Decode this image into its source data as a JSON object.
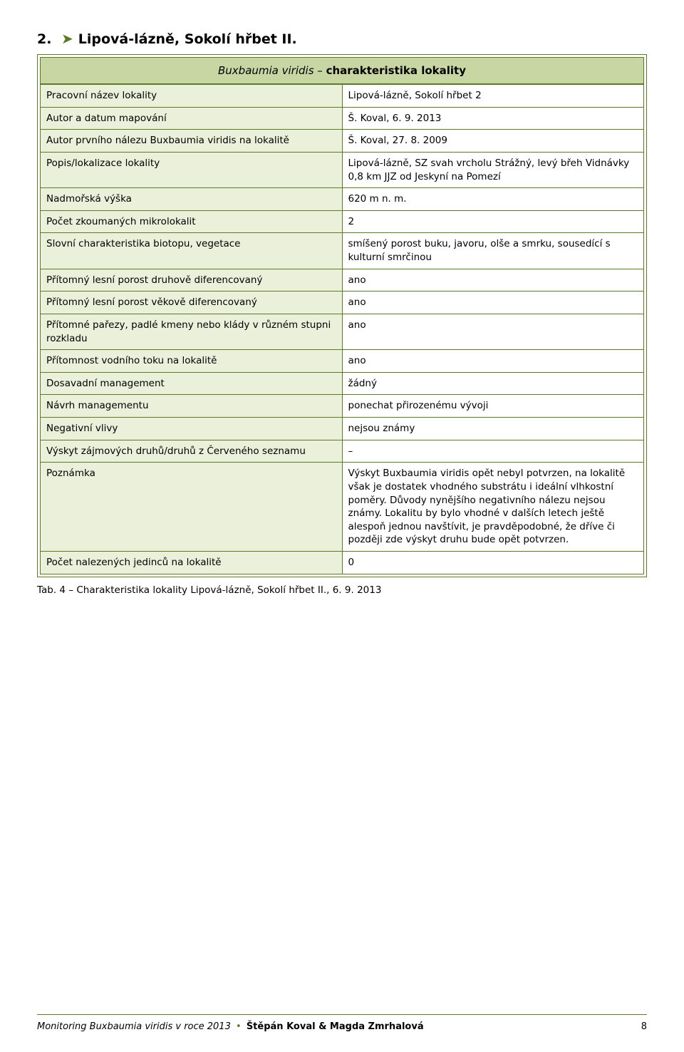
{
  "section": {
    "number": "2.",
    "arrow_glyph": "➤",
    "title": "Lipová-lázně, Sokolí hřbet II."
  },
  "box_caption": {
    "italic": "Buxbaumia viridis",
    "rest": " – ",
    "bold": "charakteristika lokality"
  },
  "rows": [
    {
      "label": "Pracovní název lokality",
      "value": "Lipová-lázně, Sokolí hřbet 2"
    },
    {
      "label": "Autor a datum mapování",
      "value": "Š. Koval, 6. 9. 2013"
    },
    {
      "label": "Autor prvního nálezu Buxbaumia viridis na lokalitě",
      "value": "Š. Koval, 27. 8. 2009"
    },
    {
      "label": "Popis/lokalizace lokality",
      "value": "Lipová-lázně, SZ svah vrcholu Strážný, levý břeh Vidnávky 0,8 km JJZ od Jeskyní na Pomezí"
    },
    {
      "label": "Nadmořská výška",
      "value": "620 m n. m."
    },
    {
      "label": "Počet zkoumaných mikrolokalit",
      "value": "2"
    },
    {
      "label": "Slovní charakteristika biotopu, vegetace",
      "value": "smíšený porost buku, javoru, olše a smrku, sousedící s kulturní smrčinou"
    },
    {
      "label": "Přítomný lesní porost druhově diferencovaný",
      "value": "ano"
    },
    {
      "label": "Přítomný lesní porost věkově diferencovaný",
      "value": "ano"
    },
    {
      "label": "Přítomné pařezy, padlé kmeny nebo klády v různém stupni rozkladu",
      "value": "ano"
    },
    {
      "label": "Přítomnost vodního toku na lokalitě",
      "value": "ano"
    },
    {
      "label": "Dosavadní management",
      "value": "žádný"
    },
    {
      "label": "Návrh managementu",
      "value": "ponechat přirozenému vývoji"
    },
    {
      "label": "Negativní vlivy",
      "value": "nejsou známy"
    },
    {
      "label": "Výskyt zájmových druhů/druhů z Červeného seznamu",
      "value": "–"
    },
    {
      "label": "Poznámka",
      "value": "Výskyt Buxbaumia viridis opět nebyl potvrzen, na lokalitě však je dostatek vhodného substrátu i ideální vlhkostní poměry. Důvody nynějšího negativního nálezu nejsou známy. Lokalitu by bylo vhodné v dalších letech ještě alespoň jednou navštívit, je pravděpodobné, že dříve či později zde výskyt druhu bude opět potvrzen."
    },
    {
      "label": "Počet nalezených jedinců na lokalitě",
      "value": "0"
    }
  ],
  "table_caption": "Tab. 4 – Charakteristika lokality Lipová-lázně, Sokolí hřbet II., 6. 9. 2013",
  "footer": {
    "left_italic": "Monitoring Buxbaumia viridis v roce 2013",
    "sep_glyph": "•",
    "left_bold": "Štěpán Koval & Magda Zmrhalová",
    "page": "8"
  },
  "colors": {
    "accent": "#5a7a24",
    "header_bg": "#c8d6a3",
    "label_bg": "#eaf0d9",
    "value_bg": "#ffffff",
    "page_bg": "#ffffff",
    "text": "#000000"
  }
}
